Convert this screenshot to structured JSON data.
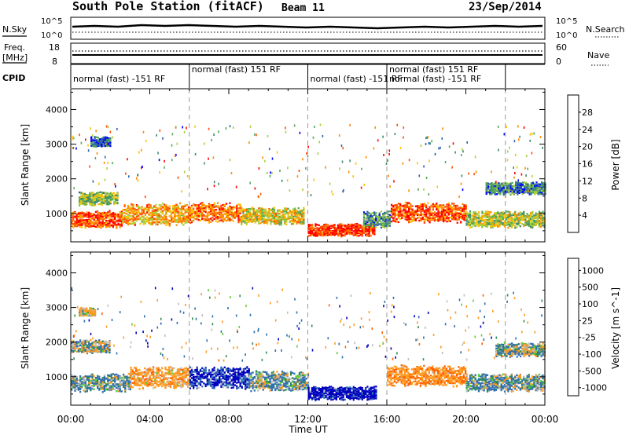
{
  "header": {
    "station": "South Pole Station (fitACF)",
    "beam": "Beam 11",
    "date": "23/Sep/2014"
  },
  "meta_panels": {
    "nsky_label": "N.Sky",
    "nsky_ticks": [
      "10^5",
      "10^0"
    ],
    "nsearch_label": "N.Search",
    "nsearch_ticks": [
      "10^5",
      "10^0"
    ],
    "freq_label": "Freq.",
    "freq_unit": "[MHz]",
    "freq_ticks": [
      "18",
      "8"
    ],
    "nave_label": "Nave",
    "nave_ticks": [
      "60",
      "0"
    ],
    "cpid_label": "CPID"
  },
  "cpid_segments": [
    {
      "label": "normal (fast) -151 RF",
      "start_h": 0,
      "end_h": 6
    },
    {
      "label": "normal (fast) 151 RF",
      "start_h": 6,
      "end_h": 12
    },
    {
      "label": "normal (fast) -151 RF",
      "start_h": 12,
      "end_h": 16
    },
    {
      "label": "normal (fast) 151 RF",
      "start_h": 16,
      "end_h": 22
    },
    {
      "label": "normal (fast) -151 RF",
      "start_h": 16,
      "end_h": 22
    }
  ],
  "colors": {
    "power": [
      "#0000ff",
      "#2e5fb0",
      "#3c8c6e",
      "#56a857",
      "#a6d13b",
      "#ffc000",
      "#ff8c00",
      "#ff4d00",
      "#ff0000"
    ],
    "velocity": [
      "#ff0000",
      "#ff6000",
      "#ff9a20",
      "#bfbfbf",
      "#5fd03a",
      "#2f8c50",
      "#2e6fb0",
      "#0000c0"
    ],
    "ground_scatter": "#bebebe"
  },
  "chart_data": [
    {
      "type": "heatmap",
      "title": "Power",
      "xlabel": "",
      "ylabel": "Slant Range [km]",
      "xlim": [
        0,
        24
      ],
      "ylim": [
        180,
        4600
      ],
      "x_ticks": [
        "00:00",
        "04:00",
        "08:00",
        "12:00",
        "16:00",
        "20:00",
        "00:00"
      ],
      "y_ticks": [
        1000,
        2000,
        3000,
        4000
      ],
      "colorbar": {
        "label": "Power [dB]",
        "ticks": [
          4,
          8,
          12,
          16,
          20,
          24,
          28
        ],
        "range": [
          0,
          30
        ]
      },
      "bands": [
        {
          "t0": 0.0,
          "t1": 2.6,
          "center": 850,
          "width": 320,
          "value": 25
        },
        {
          "t0": 0.4,
          "t1": 2.4,
          "center": 1450,
          "width": 260,
          "value": 13
        },
        {
          "t0": 2.6,
          "t1": 6.0,
          "center": 1000,
          "width": 420,
          "value": 20
        },
        {
          "t0": 6.0,
          "t1": 8.6,
          "center": 1050,
          "width": 380,
          "value": 23
        },
        {
          "t0": 8.6,
          "t1": 11.8,
          "center": 950,
          "width": 320,
          "value": 17
        },
        {
          "t0": 12.0,
          "t1": 15.4,
          "center": 550,
          "width": 240,
          "value": 27
        },
        {
          "t0": 14.8,
          "t1": 16.2,
          "center": 850,
          "width": 320,
          "value": 9
        },
        {
          "t0": 16.2,
          "t1": 20.0,
          "center": 1050,
          "width": 380,
          "value": 25
        },
        {
          "t0": 20.0,
          "t1": 24.0,
          "center": 850,
          "width": 320,
          "value": 15
        },
        {
          "t0": 21.0,
          "t1": 24.0,
          "center": 1750,
          "width": 240,
          "value": 8
        },
        {
          "t0": 1.0,
          "t1": 2.0,
          "center": 3100,
          "width": 200,
          "value": 6
        }
      ]
    },
    {
      "type": "heatmap",
      "title": "Velocity",
      "xlabel": "Time UT",
      "ylabel": "Slant Range [km]",
      "xlim": [
        0,
        24
      ],
      "ylim": [
        180,
        4600
      ],
      "x_ticks": [
        "00:00",
        "04:00",
        "08:00",
        "12:00",
        "16:00",
        "20:00",
        "00:00"
      ],
      "y_ticks": [
        1000,
        2000,
        3000,
        4000
      ],
      "colorbar": {
        "label": "Velocity [m s^-1]",
        "ticks": [
          "1000",
          "500",
          "100",
          "25",
          "-25",
          "-100",
          "-500",
          "-1000"
        ]
      },
      "bands": [
        {
          "t0": 0.0,
          "t1": 3.0,
          "center": 850,
          "width": 340,
          "value": 100
        },
        {
          "t0": 0.0,
          "t1": 2.0,
          "center": 1900,
          "width": 260,
          "value": 0
        },
        {
          "t0": 3.0,
          "t1": 6.0,
          "center": 1000,
          "width": 420,
          "value": -300
        },
        {
          "t0": 6.0,
          "t1": 9.0,
          "center": 1000,
          "width": 420,
          "value": 600
        },
        {
          "t0": 9.0,
          "t1": 12.0,
          "center": 900,
          "width": 380,
          "value": 100
        },
        {
          "t0": 12.0,
          "t1": 15.5,
          "center": 550,
          "width": 260,
          "value": 700
        },
        {
          "t0": 16.0,
          "t1": 20.0,
          "center": 1050,
          "width": 400,
          "value": -400
        },
        {
          "t0": 20.0,
          "t1": 24.0,
          "center": 850,
          "width": 340,
          "value": 100
        },
        {
          "t0": 21.5,
          "t1": 24.0,
          "center": 1800,
          "width": 260,
          "value": 0
        },
        {
          "t0": 0.4,
          "t1": 1.2,
          "center": 2900,
          "width": 160,
          "value": -200
        }
      ]
    }
  ]
}
